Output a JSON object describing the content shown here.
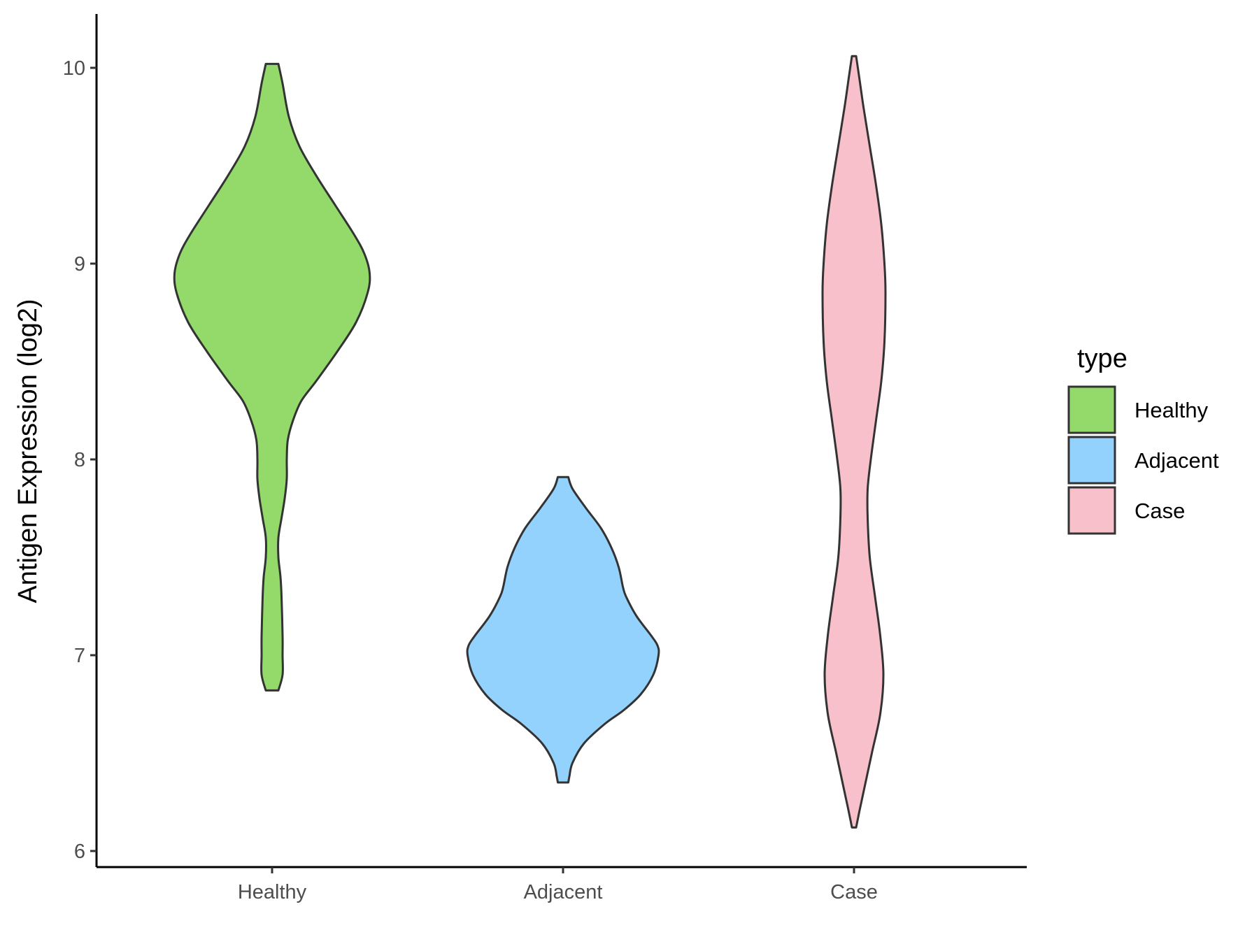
{
  "chart_data": {
    "type": "violin",
    "title": "",
    "xlabel": "",
    "ylabel": "Antigen Expression (log2)",
    "ylim": [
      5.9,
      10.25
    ],
    "yticks": [
      6,
      7,
      8,
      9,
      10
    ],
    "categories": [
      "Healthy",
      "Adjacent",
      "Case"
    ],
    "grid": false,
    "legend": {
      "title": "type",
      "placement": "right",
      "entries": [
        {
          "label": "Healthy",
          "color": "#93DA6A"
        },
        {
          "label": "Adjacent",
          "color": "#93D2FD"
        },
        {
          "label": "Case",
          "color": "#F7C0CB"
        }
      ]
    },
    "series": [
      {
        "name": "Healthy",
        "color": "#93DA6A",
        "min": 6.82,
        "max": 10.02,
        "profile": [
          [
            10.02,
            0.06
          ],
          [
            9.92,
            0.1
          ],
          [
            9.75,
            0.16
          ],
          [
            9.6,
            0.26
          ],
          [
            9.45,
            0.42
          ],
          [
            9.3,
            0.6
          ],
          [
            9.15,
            0.78
          ],
          [
            9.05,
            0.88
          ],
          [
            8.95,
            0.93
          ],
          [
            8.85,
            0.91
          ],
          [
            8.7,
            0.8
          ],
          [
            8.55,
            0.62
          ],
          [
            8.4,
            0.42
          ],
          [
            8.3,
            0.28
          ],
          [
            8.2,
            0.2
          ],
          [
            8.1,
            0.15
          ],
          [
            8.0,
            0.14
          ],
          [
            7.9,
            0.14
          ],
          [
            7.8,
            0.12
          ],
          [
            7.7,
            0.09
          ],
          [
            7.6,
            0.06
          ],
          [
            7.5,
            0.06
          ],
          [
            7.4,
            0.08
          ],
          [
            7.3,
            0.09
          ],
          [
            7.1,
            0.1
          ],
          [
            7.0,
            0.1
          ],
          [
            6.9,
            0.1
          ],
          [
            6.82,
            0.06
          ]
        ]
      },
      {
        "name": "Adjacent",
        "color": "#93D2FD",
        "min": 6.35,
        "max": 7.91,
        "profile": [
          [
            7.91,
            0.05
          ],
          [
            7.85,
            0.09
          ],
          [
            7.75,
            0.22
          ],
          [
            7.65,
            0.36
          ],
          [
            7.55,
            0.46
          ],
          [
            7.45,
            0.53
          ],
          [
            7.35,
            0.57
          ],
          [
            7.3,
            0.6
          ],
          [
            7.2,
            0.7
          ],
          [
            7.1,
            0.84
          ],
          [
            7.05,
            0.9
          ],
          [
            7.0,
            0.91
          ],
          [
            6.9,
            0.86
          ],
          [
            6.8,
            0.74
          ],
          [
            6.72,
            0.58
          ],
          [
            6.65,
            0.4
          ],
          [
            6.55,
            0.2
          ],
          [
            6.45,
            0.09
          ],
          [
            6.38,
            0.06
          ],
          [
            6.35,
            0.05
          ]
        ]
      },
      {
        "name": "Case",
        "color": "#F7C0CB",
        "min": 6.12,
        "max": 10.06,
        "profile": [
          [
            10.06,
            0.02
          ],
          [
            9.95,
            0.05
          ],
          [
            9.8,
            0.09
          ],
          [
            9.6,
            0.15
          ],
          [
            9.4,
            0.21
          ],
          [
            9.2,
            0.26
          ],
          [
            9.0,
            0.29
          ],
          [
            8.85,
            0.3
          ],
          [
            8.6,
            0.29
          ],
          [
            8.4,
            0.26
          ],
          [
            8.2,
            0.21
          ],
          [
            8.0,
            0.16
          ],
          [
            7.85,
            0.13
          ],
          [
            7.7,
            0.13
          ],
          [
            7.5,
            0.15
          ],
          [
            7.3,
            0.2
          ],
          [
            7.1,
            0.25
          ],
          [
            6.9,
            0.28
          ],
          [
            6.7,
            0.25
          ],
          [
            6.5,
            0.17
          ],
          [
            6.3,
            0.09
          ],
          [
            6.2,
            0.05
          ],
          [
            6.12,
            0.02
          ]
        ]
      }
    ]
  }
}
